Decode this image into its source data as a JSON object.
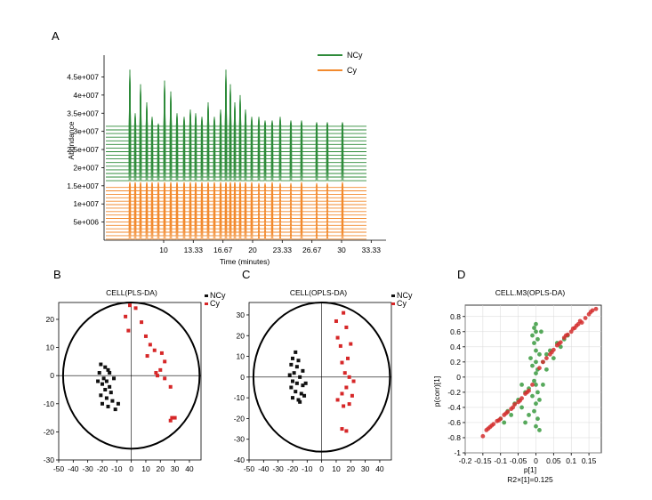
{
  "panels": {
    "a": "A",
    "b": "B",
    "c": "C",
    "d": "D"
  },
  "colors": {
    "ncy_line": "#2e8b3a",
    "cy_line": "#f28a2e",
    "black": "#111111",
    "red": "#d62728",
    "green": "#3a9a3f",
    "red_d": "#d32f2f"
  },
  "chart_data": [
    {
      "type": "line",
      "ylabel": "Abundance",
      "xlabel": "Time (minutes)",
      "x_ticks": [
        "10",
        "13.33",
        "16.67",
        "20",
        "23.33",
        "26.67",
        "30",
        "33.33"
      ],
      "x_tick_values": [
        10,
        13.33,
        16.67,
        20,
        23.33,
        26.67,
        30,
        33.33
      ],
      "xlim": [
        3.3,
        35.0
      ],
      "y_ticks": [
        "5e+006",
        "1e+007",
        "1.5e+007",
        "2e+007",
        "2.5e+007",
        "3e+007",
        "3.5e+007",
        "4e+007",
        "4.5e+007"
      ],
      "y_tick_values": [
        5000000,
        10000000,
        15000000,
        20000000,
        25000000,
        30000000,
        35000000,
        40000000,
        45000000
      ],
      "ylim": [
        0,
        51000000
      ],
      "series": [
        {
          "name": "NCy",
          "color_key": "ncy_line",
          "n_traces": 16
        },
        {
          "name": "Cy",
          "color_key": "cy_line",
          "n_traces": 16
        }
      ],
      "peak_times": [
        6.2,
        6.8,
        7.4,
        8.1,
        8.7,
        9.4,
        10.1,
        10.8,
        11.5,
        12.3,
        13.0,
        13.6,
        14.3,
        15.0,
        15.7,
        16.4,
        17.0,
        17.5,
        18.0,
        18.6,
        19.2,
        19.9,
        20.7,
        21.4,
        22.2,
        23.1,
        24.3,
        25.5,
        27.2,
        28.4,
        30.1
      ],
      "green_peak_tops": [
        47000000.0,
        35000000.0,
        43000000.0,
        38000000.0,
        34000000.0,
        32000000.0,
        44000000.0,
        41000000.0,
        35000000.0,
        34000000.0,
        36000000.0,
        35000000.0,
        34000000.0,
        38000000.0,
        34000000.0,
        36000000.0,
        47000000.0,
        43000000.0,
        38000000.0,
        40000000.0,
        36000000.0,
        34000000.0,
        34000000.0,
        33000000.0,
        33000000.0,
        34000000.0,
        33000000.0,
        33000000.0,
        32500000.0,
        32500000.0,
        32500000.0
      ]
    },
    {
      "type": "scatter",
      "title": "CELL(PLS-DA)",
      "x_ticks": [
        -50,
        -40,
        -30,
        -20,
        -10,
        0,
        10,
        20,
        30,
        40
      ],
      "y_ticks": [
        -30,
        -20,
        -10,
        0,
        10,
        20
      ],
      "xlim": [
        -50,
        48
      ],
      "ylim": [
        -30,
        26
      ],
      "ellipse": {
        "rx": 47,
        "ry": 26
      },
      "legend": [
        "NCy",
        "Cy"
      ],
      "series": [
        {
          "name": "NCy",
          "color_key": "black",
          "points": [
            [
              -21,
              4
            ],
            [
              -18,
              3
            ],
            [
              -16,
              2
            ],
            [
              -22,
              1
            ],
            [
              -19,
              -1
            ],
            [
              -17,
              -2
            ],
            [
              -20,
              -3
            ],
            [
              -23,
              -2
            ],
            [
              -15,
              -4
            ],
            [
              -18,
              -5
            ],
            [
              -14,
              -6
            ],
            [
              -21,
              -7
            ],
            [
              -17,
              -8
            ],
            [
              -13,
              -9
            ],
            [
              -16,
              -11
            ],
            [
              -11,
              -12
            ],
            [
              -9,
              -10
            ],
            [
              -12,
              -1
            ],
            [
              -15,
              1
            ],
            [
              -20,
              -10
            ]
          ]
        },
        {
          "name": "Cy",
          "color_key": "red",
          "points": [
            [
              -1,
              25
            ],
            [
              3,
              24
            ],
            [
              -4,
              21
            ],
            [
              7,
              19
            ],
            [
              -2,
              16
            ],
            [
              10,
              14
            ],
            [
              13,
              11
            ],
            [
              16,
              9
            ],
            [
              21,
              8
            ],
            [
              23,
              5
            ],
            [
              11,
              7
            ],
            [
              17,
              1
            ],
            [
              18,
              0
            ],
            [
              23,
              -1
            ],
            [
              20,
              2
            ],
            [
              27,
              -4
            ],
            [
              27,
              -16
            ],
            [
              30,
              -15
            ],
            [
              28,
              -15
            ]
          ]
        }
      ]
    },
    {
      "type": "scatter",
      "title": "CELL(OPLS-DA)",
      "x_ticks": [
        -50,
        -40,
        -30,
        -20,
        -10,
        0,
        10,
        20,
        30,
        40
      ],
      "y_ticks": [
        -40,
        -30,
        -20,
        -10,
        0,
        10,
        20,
        30
      ],
      "xlim": [
        -50,
        48
      ],
      "ylim": [
        -40,
        36
      ],
      "ellipse": {
        "rx": 47,
        "ry": 36
      },
      "legend": [
        "NCy",
        "Cy"
      ],
      "series": [
        {
          "name": "NCy",
          "color_key": "black",
          "points": [
            [
              -18,
              12
            ],
            [
              -20,
              9
            ],
            [
              -16,
              8
            ],
            [
              -21,
              6
            ],
            [
              -17,
              5
            ],
            [
              -19,
              2
            ],
            [
              -22,
              1
            ],
            [
              -15,
              0
            ],
            [
              -20,
              -2
            ],
            [
              -17,
              -3
            ],
            [
              -13,
              -4
            ],
            [
              -21,
              -5
            ],
            [
              -18,
              -7
            ],
            [
              -14,
              -8
            ],
            [
              -20,
              -10
            ],
            [
              -16,
              -11
            ],
            [
              -12,
              -9
            ],
            [
              -11,
              -3
            ],
            [
              -13,
              3
            ],
            [
              -15,
              -12
            ]
          ]
        },
        {
          "name": "Cy",
          "color_key": "red",
          "points": [
            [
              15,
              31
            ],
            [
              10,
              27
            ],
            [
              17,
              24
            ],
            [
              11,
              19
            ],
            [
              20,
              16
            ],
            [
              13,
              15
            ],
            [
              18,
              9
            ],
            [
              14,
              7
            ],
            [
              16,
              2
            ],
            [
              19,
              0
            ],
            [
              22,
              -2
            ],
            [
              17,
              -5
            ],
            [
              14,
              -8
            ],
            [
              21,
              -9
            ],
            [
              11,
              -11
            ],
            [
              19,
              -13
            ],
            [
              15,
              -14
            ],
            [
              17,
              -26
            ],
            [
              14,
              -25
            ]
          ]
        }
      ]
    },
    {
      "type": "scatter",
      "title": "CELL.M3(OPLS-DA)",
      "xlabel": "p[1]",
      "xlabel2": "R2×[1]=0.125",
      "ylabel": "p(corr)[1]",
      "x_ticks": [
        "-0.2",
        "-0.15",
        "-0.1",
        "-0.05",
        "0",
        "0.05",
        "0.1",
        "0.15"
      ],
      "x_tick_values": [
        -0.2,
        -0.15,
        -0.1,
        -0.05,
        0,
        0.05,
        0.1,
        0.15
      ],
      "y_ticks": [
        "-1",
        "-0.8",
        "-0.6",
        "-0.4",
        "-0.2",
        "0",
        "0.2",
        "0.4",
        "0.6",
        "0.8"
      ],
      "y_tick_values": [
        -1,
        -0.8,
        -0.6,
        -0.4,
        -0.2,
        0,
        0.2,
        0.4,
        0.6,
        0.8
      ],
      "xlim": [
        -0.2,
        0.185
      ],
      "ylim": [
        -1,
        0.95
      ],
      "series": [
        {
          "name": "green",
          "color_key": "green",
          "points": [
            [
              0,
              0.7
            ],
            [
              0,
              0.6
            ],
            [
              0.005,
              0.5
            ],
            [
              -0.005,
              0.45
            ],
            [
              0,
              0.35
            ],
            [
              0.01,
              0.3
            ],
            [
              0,
              0.2
            ],
            [
              -0.01,
              0.15
            ],
            [
              0.005,
              0.1
            ],
            [
              0,
              0.05
            ],
            [
              -0.005,
              -0.05
            ],
            [
              0,
              -0.1
            ],
            [
              0.005,
              -0.2
            ],
            [
              -0.01,
              -0.25
            ],
            [
              0,
              -0.35
            ],
            [
              -0.005,
              -0.45
            ],
            [
              0.005,
              -0.55
            ],
            [
              -0.02,
              -0.5
            ],
            [
              -0.03,
              -0.6
            ],
            [
              -0.04,
              -0.4
            ],
            [
              -0.05,
              -0.3
            ],
            [
              -0.03,
              -0.2
            ],
            [
              -0.06,
              -0.35
            ],
            [
              -0.08,
              -0.45
            ],
            [
              -0.1,
              -0.55
            ],
            [
              -0.02,
              -0.15
            ],
            [
              0.02,
              0.2
            ],
            [
              0.03,
              0.1
            ],
            [
              0.05,
              0.25
            ],
            [
              0.04,
              0.35
            ],
            [
              0.06,
              0.45
            ],
            [
              0.08,
              0.5
            ],
            [
              0.02,
              -0.1
            ],
            [
              0.01,
              -0.3
            ],
            [
              -0.015,
              0.25
            ],
            [
              0.015,
              0.6
            ],
            [
              -0.005,
              0.65
            ],
            [
              0,
              -0.65
            ],
            [
              0.01,
              -0.7
            ],
            [
              -0.01,
              0.55
            ],
            [
              0.03,
              0.3
            ],
            [
              -0.04,
              -0.1
            ],
            [
              -0.07,
              -0.5
            ],
            [
              0.07,
              0.4
            ],
            [
              0.09,
              0.55
            ],
            [
              -0.09,
              -0.6
            ]
          ]
        },
        {
          "name": "red",
          "color_key": "red_d",
          "points": [
            [
              0.16,
              0.88
            ],
            [
              0.15,
              0.83
            ],
            [
              0.14,
              0.78
            ],
            [
              0.13,
              0.72
            ],
            [
              0.12,
              0.7
            ],
            [
              0.11,
              0.65
            ],
            [
              0.1,
              0.6
            ],
            [
              0.09,
              0.56
            ],
            [
              0.08,
              0.52
            ],
            [
              0.07,
              0.46
            ],
            [
              0.06,
              0.42
            ],
            [
              0.05,
              0.36
            ],
            [
              0.04,
              0.3
            ],
            [
              0.03,
              0.25
            ],
            [
              0.02,
              0.2
            ],
            [
              0.01,
              0.12
            ],
            [
              -0.01,
              -0.1
            ],
            [
              -0.02,
              -0.18
            ],
            [
              -0.03,
              -0.22
            ],
            [
              -0.04,
              -0.28
            ],
            [
              -0.05,
              -0.33
            ],
            [
              -0.06,
              -0.36
            ],
            [
              -0.07,
              -0.42
            ],
            [
              -0.08,
              -0.46
            ],
            [
              -0.09,
              -0.5
            ],
            [
              -0.1,
              -0.55
            ],
            [
              -0.11,
              -0.58
            ],
            [
              -0.12,
              -0.62
            ],
            [
              -0.13,
              -0.66
            ],
            [
              -0.14,
              -0.7
            ],
            [
              -0.15,
              -0.78
            ],
            [
              0.17,
              0.9
            ],
            [
              0.155,
              0.86
            ],
            [
              0.125,
              0.74
            ],
            [
              0.105,
              0.64
            ],
            [
              0.085,
              0.55
            ],
            [
              0.065,
              0.44
            ],
            [
              0.045,
              0.33
            ],
            [
              -0.025,
              -0.2
            ],
            [
              -0.045,
              -0.31
            ],
            [
              -0.065,
              -0.4
            ],
            [
              -0.085,
              -0.48
            ],
            [
              -0.105,
              -0.57
            ],
            [
              -0.125,
              -0.64
            ],
            [
              -0.135,
              -0.68
            ],
            [
              0.115,
              0.68
            ]
          ]
        }
      ]
    }
  ]
}
